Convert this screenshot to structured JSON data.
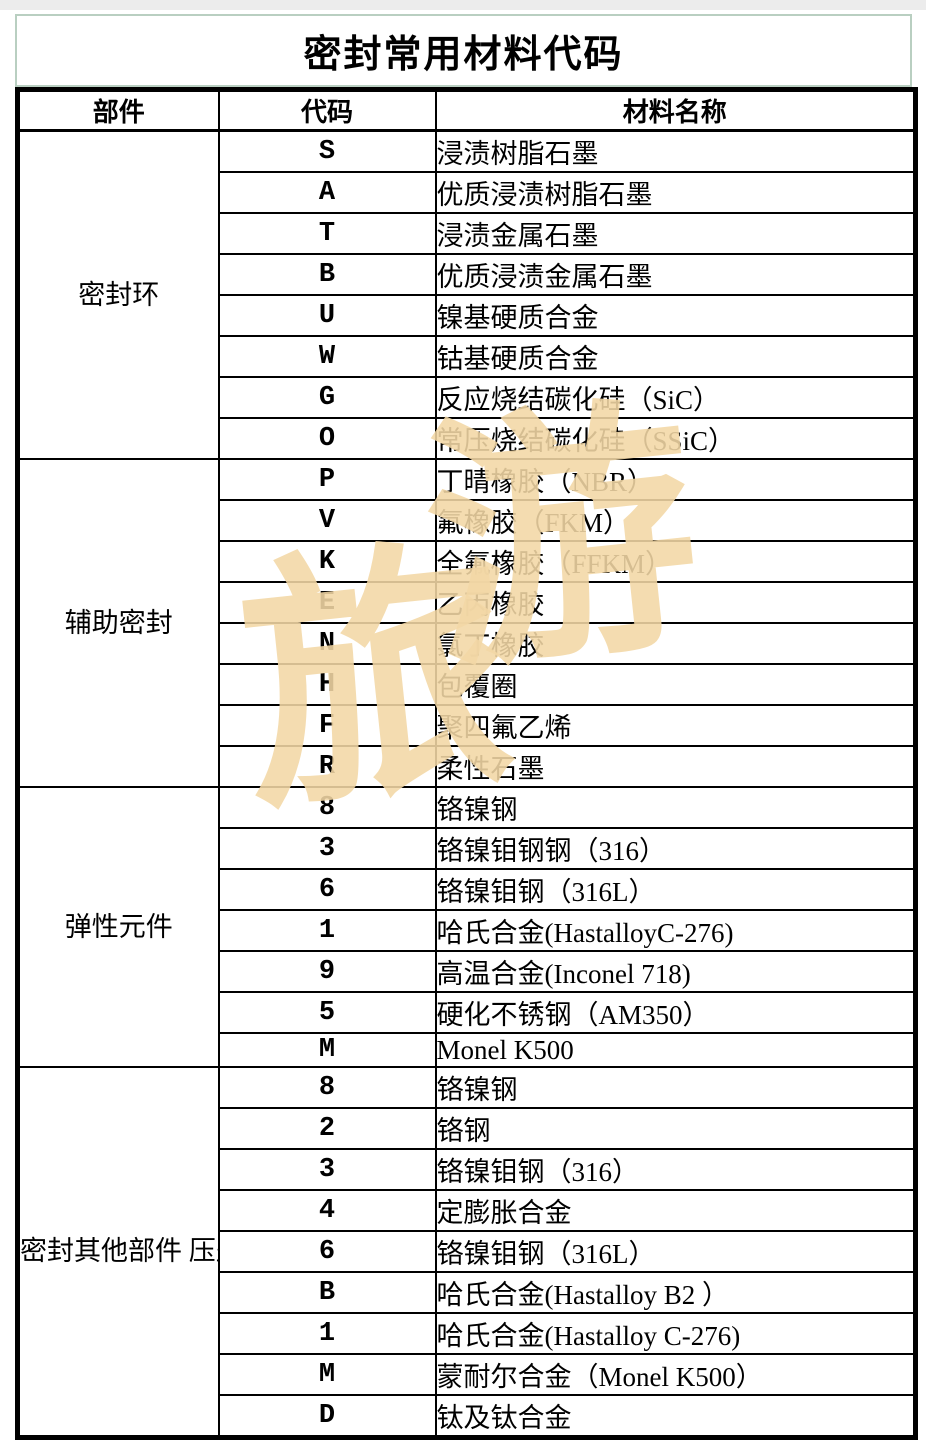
{
  "page": {
    "title": "密封常用材料代码"
  },
  "colors": {
    "title_border": "#b9cfc1",
    "table_border": "#000000",
    "watermark": "#f3d8a6"
  },
  "watermark": {
    "char_left": "旅",
    "char_right": "游"
  },
  "table": {
    "headers": {
      "component": "部件",
      "code": "代码",
      "material": "材料名称"
    },
    "sections": [
      {
        "label": "密封环",
        "rows": [
          {
            "code": "S",
            "material": "浸渍树脂石墨"
          },
          {
            "code": "A",
            "material": "优质浸渍树脂石墨"
          },
          {
            "code": "T",
            "material": "浸渍金属石墨"
          },
          {
            "code": "B",
            "material": "优质浸渍金属石墨"
          },
          {
            "code": "U",
            "material": "镍基硬质合金"
          },
          {
            "code": "W",
            "material": "钴基硬质合金"
          },
          {
            "code": "G",
            "material": "反应烧结碳化硅（SiC）"
          },
          {
            "code": "O",
            "material": "常压烧结碳化硅（SSiC）"
          }
        ]
      },
      {
        "label": "辅助密封",
        "rows": [
          {
            "code": "P",
            "material": "丁晴橡胶（NBR）"
          },
          {
            "code": "V",
            "material": "氟橡胶（FKM）"
          },
          {
            "code": "K",
            "material": "全氟橡胶（FFKM）"
          },
          {
            "code": "E",
            "material": "乙丙橡胶"
          },
          {
            "code": "N",
            "material": "氯丁橡胶"
          },
          {
            "code": "H",
            "material": "包覆圈"
          },
          {
            "code": "F",
            "material": "聚四氟乙烯"
          },
          {
            "code": "R",
            "material": "柔性石墨"
          }
        ]
      },
      {
        "label": "弹性元件",
        "rows": [
          {
            "code": "8",
            "material": "铬镍钢"
          },
          {
            "code": "3",
            "material": "铬镍钼钢钢（316）"
          },
          {
            "code": "6",
            "material": "铬镍钼钢（316L）"
          },
          {
            "code": "1",
            "material": "哈氏合金(HastalloyC-276)"
          },
          {
            "code": "9",
            "material": "高温合金(Inconel 718)"
          },
          {
            "code": "5",
            "material": "硬化不锈钢（AM350）"
          },
          {
            "code": "M",
            "material": "Monel K500"
          }
        ]
      },
      {
        "label": "密封其他部件\n压盖和轴套",
        "rows": [
          {
            "code": "8",
            "material": "铬镍钢"
          },
          {
            "code": "2",
            "material": "铬钢"
          },
          {
            "code": "3",
            "material": "铬镍钼钢（316）"
          },
          {
            "code": "4",
            "material": "定膨胀合金"
          },
          {
            "code": "6",
            "material": "铬镍钼钢（316L）"
          },
          {
            "code": "B",
            "material": "哈氏合金(Hastalloy B2 ）"
          },
          {
            "code": "1",
            "material": "哈氏合金(Hastalloy C-276)"
          },
          {
            "code": "M",
            "material": "蒙耐尔合金（Monel K500）"
          },
          {
            "code": "D",
            "material": "钛及钛合金"
          }
        ]
      }
    ]
  }
}
